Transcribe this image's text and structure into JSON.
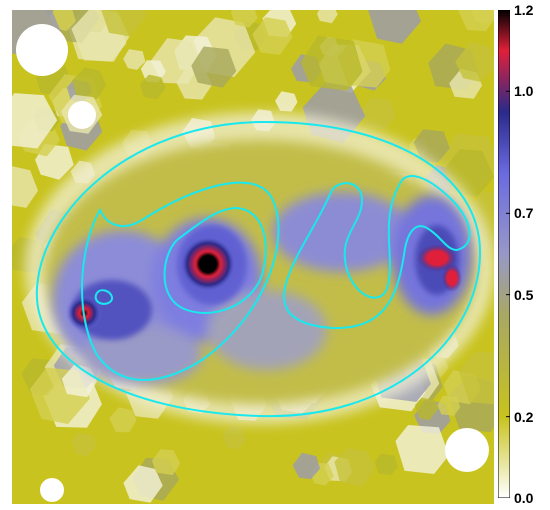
{
  "colorbar": {
    "min": 0.0,
    "max": 1.2,
    "ticks": [
      {
        "value": 1.2,
        "label": "1.2"
      },
      {
        "value": 1.0,
        "label": "1.0"
      },
      {
        "value": 0.7,
        "label": "0.7"
      },
      {
        "value": 0.5,
        "label": "0.5"
      },
      {
        "value": 0.2,
        "label": "0.2"
      },
      {
        "value": 0.0,
        "label": "0.0"
      }
    ],
    "color_stops": [
      {
        "value": 0.0,
        "color": "#ffffff"
      },
      {
        "value": 0.2,
        "color": "#c8c31e"
      },
      {
        "value": 0.45,
        "color": "#a8a864"
      },
      {
        "value": 0.6,
        "color": "#9898c8"
      },
      {
        "value": 0.8,
        "color": "#6a6ae0"
      },
      {
        "value": 0.95,
        "color": "#2a2a8a"
      },
      {
        "value": 1.1,
        "color": "#e0203a"
      },
      {
        "value": 1.2,
        "color": "#000000"
      }
    ]
  },
  "contour_color": "#19e8ee"
}
